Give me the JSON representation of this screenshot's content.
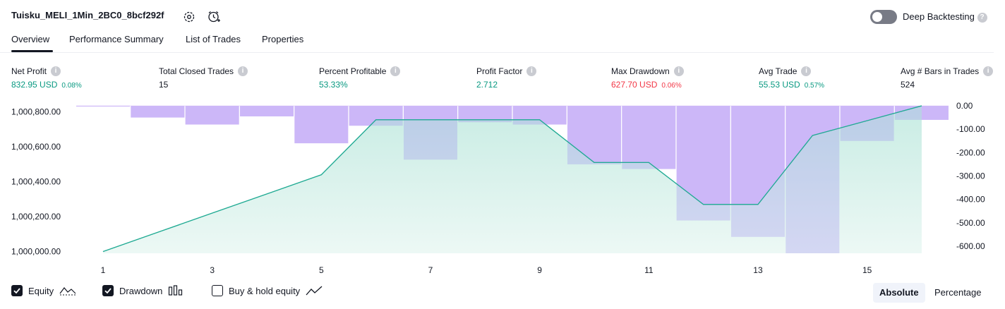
{
  "header": {
    "strategy_name": "Tuisku_MELI_1Min_2BC0_8bcf292f",
    "deep_backtesting_label": "Deep Backtesting",
    "deep_backtesting_enabled": false,
    "icons": [
      "settings-icon",
      "alert-clock-icon",
      "help-icon"
    ]
  },
  "tabs": [
    {
      "label": "Overview",
      "active": true
    },
    {
      "label": "Performance Summary",
      "active": false
    },
    {
      "label": "List of Trades",
      "active": false
    },
    {
      "label": "Properties",
      "active": false
    }
  ],
  "metrics": [
    {
      "label": "Net Profit",
      "value": "832.95 USD",
      "pct": "0.08%",
      "tone": "green"
    },
    {
      "label": "Total Closed Trades",
      "value": "15",
      "pct": "",
      "tone": "neutral"
    },
    {
      "label": "Percent Profitable",
      "value": "53.33%",
      "pct": "",
      "tone": "green"
    },
    {
      "label": "Profit Factor",
      "value": "2.712",
      "pct": "",
      "tone": "green"
    },
    {
      "label": "Max Drawdown",
      "value": "627.70 USD",
      "pct": "0.06%",
      "tone": "red"
    },
    {
      "label": "Avg Trade",
      "value": "55.53 USD",
      "pct": "0.57%",
      "tone": "green"
    },
    {
      "label": "Avg # Bars in Trades",
      "value": "524",
      "pct": "",
      "tone": "neutral"
    }
  ],
  "colors": {
    "equity_line": "#22ab94",
    "equity_fill": "#c8ece4",
    "drawdown_bar": "#ddc4fb",
    "green": "#089981",
    "red": "#f23645"
  },
  "chart_data": {
    "type": "area",
    "x": [
      1,
      2,
      3,
      4,
      5,
      6,
      7,
      8,
      9,
      10,
      11,
      12,
      13,
      14,
      15,
      16
    ],
    "x_ticks": [
      1,
      3,
      5,
      7,
      9,
      11,
      13,
      15
    ],
    "series": [
      {
        "name": "Equity",
        "type": "area",
        "axis": "left",
        "values": [
          1000000,
          1000110,
          1000220,
          1000330,
          1000440,
          1000755,
          1000755,
          1000755,
          1000755,
          1000510,
          1000510,
          1000270,
          1000270,
          1000665,
          1000750,
          1000835
        ]
      },
      {
        "name": "Drawdown",
        "type": "bar",
        "axis": "right",
        "values": [
          -3,
          -50,
          -80,
          -45,
          -160,
          -85,
          -230,
          -70,
          -80,
          -250,
          -270,
          -490,
          -560,
          -630,
          -150,
          -60
        ]
      }
    ],
    "y_left": {
      "ticks": [
        "1,000,000.00",
        "1,000,200.00",
        "1,000,400.00",
        "1,000,600.00",
        "1,000,800.00"
      ],
      "range": [
        999990,
        1000835
      ]
    },
    "y_right": {
      "ticks": [
        "0.00",
        "-100.00",
        "-200.00",
        "-300.00",
        "-400.00",
        "-500.00",
        "-600.00"
      ],
      "range": [
        -630,
        0
      ]
    },
    "legend": {
      "equity": {
        "label": "Equity",
        "checked": true
      },
      "drawdown": {
        "label": "Drawdown",
        "checked": true
      },
      "buyhold": {
        "label": "Buy & hold equity",
        "checked": false
      }
    },
    "scale_modes": [
      {
        "label": "Absolute",
        "active": true
      },
      {
        "label": "Percentage",
        "active": false
      }
    ]
  }
}
